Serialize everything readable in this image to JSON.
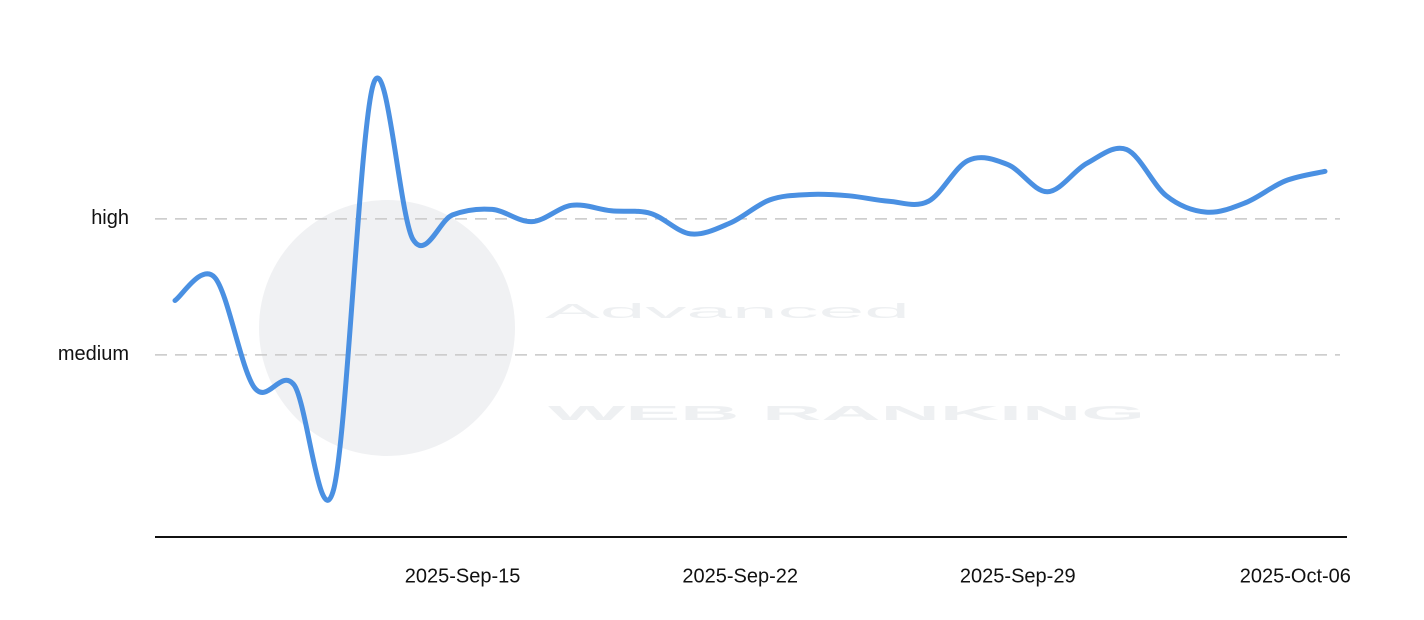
{
  "watermark": {
    "line1": "Advanced",
    "line2": "WEB RANKING"
  },
  "chart_data": {
    "type": "line",
    "x": [
      "2025-Sep-08",
      "2025-Sep-09",
      "2025-Sep-10",
      "2025-Sep-11",
      "2025-Sep-12",
      "2025-Sep-13",
      "2025-Sep-14",
      "2025-Sep-15",
      "2025-Sep-16",
      "2025-Sep-17",
      "2025-Sep-18",
      "2025-Sep-19",
      "2025-Sep-20",
      "2025-Sep-21",
      "2025-Sep-22",
      "2025-Sep-23",
      "2025-Sep-24",
      "2025-Sep-25",
      "2025-Sep-26",
      "2025-Sep-27",
      "2025-Sep-28",
      "2025-Sep-29",
      "2025-Sep-30",
      "2025-Oct-01",
      "2025-Oct-02",
      "2025-Oct-03",
      "2025-Oct-04",
      "2025-Oct-05",
      "2025-Oct-06",
      "2025-Oct-07"
    ],
    "series": [
      {
        "color": "#4a90e2",
        "values": [
          1.4,
          1.57,
          0.76,
          0.78,
          0.01,
          2.99,
          1.85,
          2.03,
          2.07,
          1.98,
          2.1,
          2.06,
          2.04,
          1.89,
          1.97,
          2.14,
          2.18,
          2.17,
          2.13,
          2.13,
          2.43,
          2.4,
          2.2,
          2.41,
          2.51,
          2.17,
          2.05,
          2.12,
          2.28,
          2.35
        ]
      }
    ],
    "xticks": [
      "2025-Sep-15",
      "2025-Sep-22",
      "2025-Sep-29",
      "2025-Oct-06"
    ],
    "ylim": [
      -0.34,
      3.0
    ],
    "yticks": [
      {
        "value": 1,
        "label": "medium"
      },
      {
        "value": 2,
        "label": "high"
      }
    ],
    "grid": true
  }
}
